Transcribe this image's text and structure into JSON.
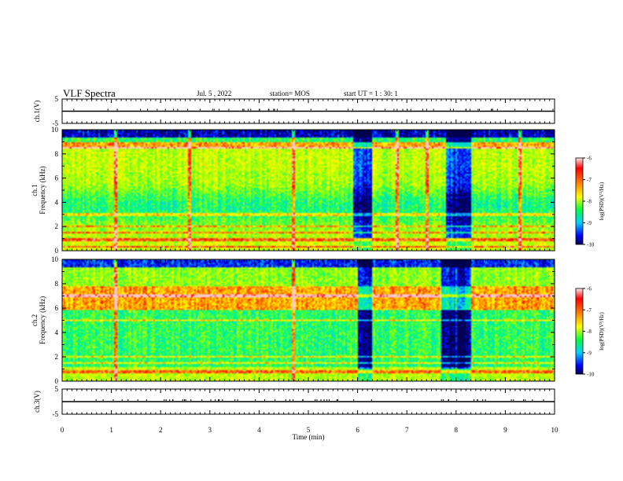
{
  "header": {
    "title": "VLF Spectra",
    "date": "Jul. 5 , 2022",
    "station": "station= MOS",
    "start_ut": "start UT = 1 : 30: 1"
  },
  "colors": {
    "scale": [
      "#000060",
      "#0000ff",
      "#00c8ff",
      "#00ff80",
      "#a0ff00",
      "#ffff00",
      "#ff8000",
      "#ff0000",
      "#ffe0e0"
    ]
  },
  "chart_data": [
    {
      "type": "line",
      "panel": "ch1-waveform",
      "ylabel": "ch.1(V)",
      "x": [
        0,
        10
      ],
      "y": [
        0,
        0
      ],
      "xlim": [
        0,
        10
      ],
      "ylim": [
        -5,
        5
      ],
      "y_ticks": [
        "5",
        "-5"
      ]
    },
    {
      "type": "heatmap",
      "panel": "ch1-spectrogram",
      "ylabel": "ch.1 Frequency (kHz)",
      "xlim": [
        0,
        10
      ],
      "ylim": [
        0,
        10
      ],
      "y_ticks": [
        "0",
        "2",
        "4",
        "6",
        "8",
        "10"
      ],
      "colorbar": {
        "label": "log(PSD)(V²/Hz)",
        "ticks": [
          "-6",
          "-7",
          "-8",
          "-9",
          "-10"
        ],
        "range": [
          -10,
          -6
        ]
      },
      "features": {
        "dark_gaps_min": [
          [
            5.9,
            6.3
          ],
          [
            7.8,
            8.3
          ]
        ],
        "vertical_spikes_min": [
          1.1,
          2.6,
          4.7,
          6.8,
          7.4,
          9.3
        ],
        "horizontal_lines_khz": [
          0.3,
          0.9,
          1.5,
          2.0,
          3.0,
          8.5
        ]
      }
    },
    {
      "type": "heatmap",
      "panel": "ch2-spectrogram",
      "ylabel": "ch.2 Frequency (kHz)",
      "xlim": [
        0,
        10
      ],
      "ylim": [
        0,
        10
      ],
      "y_ticks": [
        "0",
        "2",
        "4",
        "6",
        "8",
        "10"
      ],
      "colorbar": {
        "label": "log(PSD)(V²/Hz)",
        "ticks": [
          "-6",
          "-7",
          "-8",
          "-9",
          "-10"
        ],
        "range": [
          -10,
          -6
        ]
      },
      "features": {
        "dark_gaps_min": [
          [
            6.0,
            6.3
          ],
          [
            7.7,
            8.3
          ]
        ],
        "vertical_spikes_min": [
          1.1,
          4.7
        ],
        "horizontal_lines_khz": [
          0.8,
          1.5,
          2.0,
          5.0,
          7.0
        ]
      }
    },
    {
      "type": "line",
      "panel": "ch3-waveform",
      "ylabel": "ch.3(V)",
      "x": [
        0,
        10
      ],
      "y": [
        0,
        0
      ],
      "xlim": [
        0,
        10
      ],
      "ylim": [
        -5,
        5
      ],
      "y_ticks": [
        "5",
        "-5"
      ],
      "xlabel": "Time (min)",
      "x_ticks": [
        "0",
        "1",
        "2",
        "3",
        "4",
        "5",
        "6",
        "7",
        "8",
        "9",
        "10"
      ]
    }
  ]
}
